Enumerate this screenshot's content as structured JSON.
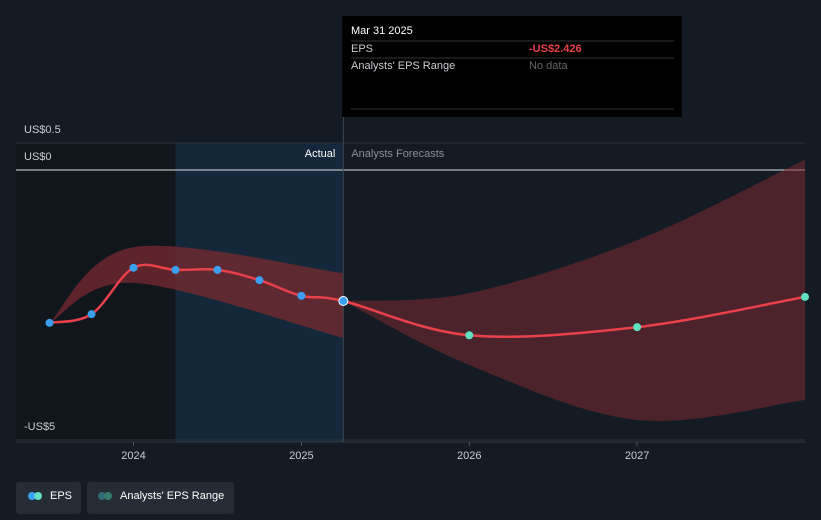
{
  "chart_data": {
    "type": "line",
    "xlim": [
      2023.3,
      2028.0
    ],
    "ylim": [
      -5,
      0.5
    ],
    "xticks": [
      2024,
      2025,
      2026,
      2027
    ],
    "yticks": [
      {
        "value": 0.5,
        "label": "US$0.5"
      },
      {
        "value": 0,
        "label": "US$0"
      },
      {
        "value": -5,
        "label": "-US$5"
      }
    ],
    "actual_label": "Actual",
    "forecast_label": "Analysts Forecasts",
    "actual_span": [
      2024.25,
      2025.25
    ],
    "series": [
      {
        "name": "EPS",
        "color": "#e8414a",
        "actual_color": "#3a9fef",
        "forecast_color": "#5fe0c0",
        "x": [
          2023.5,
          2023.75,
          2024.0,
          2024.25,
          2024.5,
          2024.75,
          2025.0,
          2025.25,
          2026.0,
          2027.0,
          2028.0
        ],
        "values": [
          -2.83,
          -2.67,
          -1.81,
          -1.85,
          -1.85,
          -2.04,
          -2.33,
          -2.426,
          -3.06,
          -2.91,
          -2.35
        ]
      },
      {
        "name": "Analysts' EPS Range",
        "color": "#7a2a30",
        "x": [
          2023.5,
          2024.0,
          2025.25
        ],
        "high": [
          -2.83,
          -1.43,
          -1.91
        ],
        "low": [
          -2.83,
          -2.09,
          -3.11
        ]
      }
    ],
    "forecast_range": {
      "x": [
        2025.25,
        2026.0,
        2027.0,
        2028.0
      ],
      "high": [
        -2.426,
        -2.28,
        -1.3,
        0.19
      ],
      "low": [
        -2.426,
        -3.61,
        -4.63,
        -4.26
      ]
    },
    "tooltip": {
      "date": "Mar 31 2025",
      "rows": [
        [
          "EPS",
          "-US$2.426"
        ],
        [
          "Analysts' EPS Range",
          "No data"
        ]
      ]
    }
  }
}
